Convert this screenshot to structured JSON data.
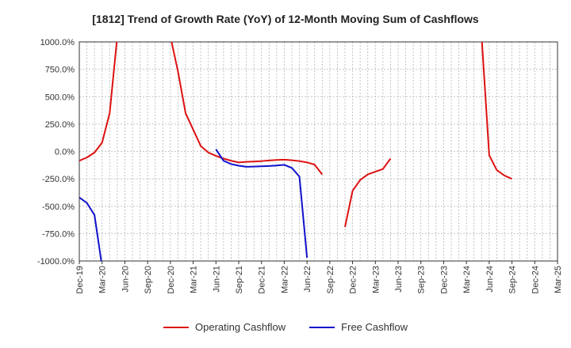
{
  "chart_data": {
    "type": "line",
    "title": "[1812]  Trend of Growth Rate (YoY) of 12-Month Moving Sum of Cashflows",
    "xlabel": "",
    "ylabel": "",
    "ylim": [
      -1000,
      1000
    ],
    "yticks": [
      1000,
      750,
      500,
      250,
      0,
      -250,
      -500,
      -750,
      -1000
    ],
    "ytick_labels": [
      "1000.0%",
      "750.0%",
      "500.0%",
      "250.0%",
      "0.0%",
      "-250.0%",
      "-500.0%",
      "-750.0%",
      "-1000.0%"
    ],
    "x_start": "2019-12",
    "xtick_labels": [
      "Dec-19",
      "Mar-20",
      "Jun-20",
      "Sep-20",
      "Dec-20",
      "Mar-21",
      "Jun-21",
      "Sep-21",
      "Dec-21",
      "Mar-22",
      "Jun-22",
      "Sep-22",
      "Dec-22",
      "Mar-23",
      "Jun-23",
      "Sep-23",
      "Dec-23",
      "Mar-24",
      "Jun-24",
      "Sep-24",
      "Dec-24",
      "Mar-25"
    ],
    "grid": true,
    "legend_position": "bottom",
    "series": [
      {
        "name": "Operating Cashflow",
        "color": "#dd1111",
        "points": [
          [
            "2019-12",
            -85
          ],
          [
            "2020-01",
            -55
          ],
          [
            "2020-02",
            -10
          ],
          [
            "2020-03",
            80
          ],
          [
            "2020-04",
            350
          ],
          [
            "2020-05",
            1050
          ],
          null,
          [
            "2020-12",
            1050
          ],
          [
            "2021-01",
            730
          ],
          [
            "2021-02",
            350
          ],
          [
            "2021-03",
            200
          ],
          [
            "2021-04",
            50
          ],
          [
            "2021-05",
            -10
          ],
          [
            "2021-06",
            -40
          ],
          [
            "2021-07",
            -65
          ],
          [
            "2021-08",
            -85
          ],
          [
            "2021-09",
            -100
          ],
          [
            "2021-10",
            -95
          ],
          [
            "2021-11",
            -92
          ],
          [
            "2021-12",
            -88
          ],
          [
            "2022-01",
            -82
          ],
          [
            "2022-02",
            -78
          ],
          [
            "2022-03",
            -75
          ],
          [
            "2022-04",
            -80
          ],
          [
            "2022-05",
            -88
          ],
          [
            "2022-06",
            -100
          ],
          [
            "2022-07",
            -120
          ],
          [
            "2022-08",
            -210
          ],
          null,
          [
            "2022-11",
            -690
          ],
          [
            "2022-12",
            -360
          ],
          [
            "2023-01",
            -260
          ],
          [
            "2023-02",
            -210
          ],
          [
            "2023-03",
            -185
          ],
          [
            "2023-04",
            -160
          ],
          [
            "2023-05",
            -65
          ],
          null,
          [
            "2024-05",
            1050
          ],
          [
            "2024-06",
            -35
          ],
          [
            "2024-07",
            -170
          ],
          [
            "2024-08",
            -220
          ],
          [
            "2024-09",
            -250
          ]
        ]
      },
      {
        "name": "Free Cashflow",
        "color": "#1111cc",
        "points": [
          [
            "2019-12",
            -420
          ],
          [
            "2020-01",
            -470
          ],
          [
            "2020-02",
            -580
          ],
          [
            "2020-03",
            -1050
          ],
          null,
          [
            "2021-06",
            20
          ],
          [
            "2021-07",
            -85
          ],
          [
            "2021-08",
            -115
          ],
          [
            "2021-09",
            -130
          ],
          [
            "2021-10",
            -140
          ],
          [
            "2021-11",
            -138
          ],
          [
            "2021-12",
            -135
          ],
          [
            "2022-01",
            -133
          ],
          [
            "2022-02",
            -128
          ],
          [
            "2022-03",
            -122
          ],
          [
            "2022-04",
            -150
          ],
          [
            "2022-05",
            -230
          ],
          [
            "2022-06",
            -970
          ]
        ]
      }
    ]
  }
}
